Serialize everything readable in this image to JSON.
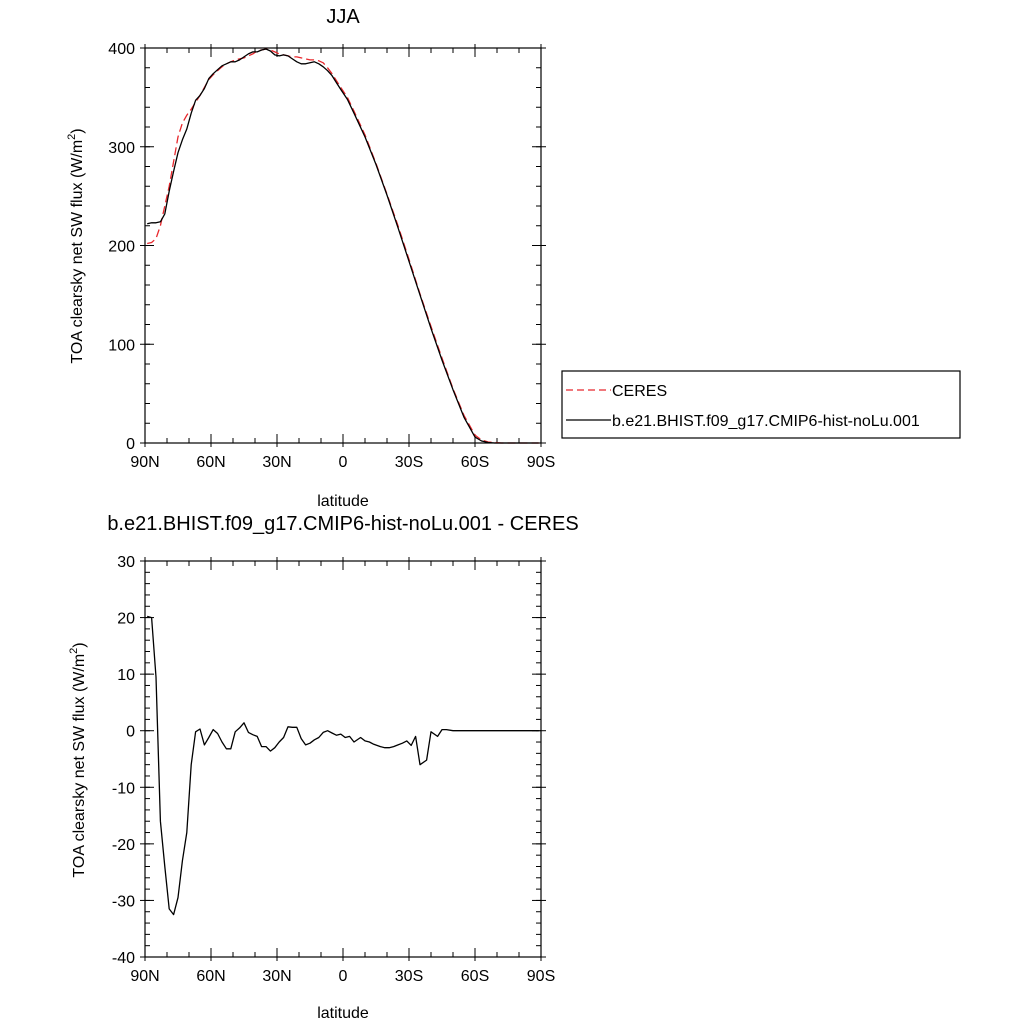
{
  "chart_data": [
    {
      "type": "line",
      "title": "JJA",
      "xlabel": "latitude",
      "ylabel": "TOA clearsky net SW flux (W/m",
      "ylabel_sup": "2",
      "ylabel_end": ")",
      "xlim": [
        90,
        -90
      ],
      "ylim": [
        0,
        400
      ],
      "xticks": [
        90,
        60,
        30,
        0,
        -30,
        -60,
        -90
      ],
      "xtick_labels": [
        "90N",
        "60N",
        "30N",
        "0",
        "30S",
        "60S",
        "90S"
      ],
      "yticks": [
        0,
        100,
        200,
        300,
        400
      ],
      "ytick_labels": [
        "0",
        "100",
        "200",
        "300",
        "400"
      ],
      "legend_placement": "right",
      "series": [
        {
          "name": "CERES",
          "color": "#e8282d",
          "dash": true,
          "x": [
            89,
            87,
            85,
            83,
            81,
            79,
            77,
            75,
            73,
            71,
            69,
            67,
            65,
            63,
            61,
            59,
            57,
            55,
            53,
            51,
            49,
            47,
            45,
            43,
            41,
            39,
            37,
            35,
            33,
            31,
            29,
            27,
            25,
            23,
            21,
            19,
            17,
            15,
            13,
            11,
            9,
            7,
            5,
            3,
            1,
            -2,
            -5,
            -10,
            -15,
            -20,
            -25,
            -30,
            -35,
            -40,
            -45,
            -50,
            -55,
            -60,
            -63,
            -66,
            -69,
            -72,
            -75,
            -78,
            -81,
            -84,
            -87,
            -89
          ],
          "y": [
            202,
            203,
            207,
            220,
            240,
            260,
            285,
            310,
            324,
            332,
            338,
            345,
            352,
            360,
            368,
            373,
            377,
            381,
            384,
            386,
            388,
            389,
            390,
            392,
            394,
            397,
            398,
            399,
            398,
            396,
            394,
            393,
            392,
            391,
            391,
            390,
            389,
            388,
            388,
            387,
            385,
            380,
            374,
            367,
            360,
            350,
            336,
            312,
            283,
            252,
            220,
            186,
            151,
            118,
            86,
            55,
            28,
            8,
            3,
            1,
            0.5,
            0,
            0,
            0,
            0,
            0,
            0,
            0
          ]
        },
        {
          "name": "b.e21.BHIST.f09_g17.CMIP6-hist-noLu.001",
          "color": "#000000",
          "dash": false,
          "x": [
            89,
            87,
            85,
            83,
            81,
            79,
            77,
            75,
            73,
            71,
            69,
            67,
            65,
            63,
            61,
            59,
            57,
            55,
            53,
            51,
            49,
            47,
            45,
            43,
            41,
            39,
            37,
            35,
            33,
            31,
            29,
            27,
            25,
            23,
            21,
            19,
            17,
            15,
            13,
            11,
            9,
            7,
            5,
            3,
            1,
            -2,
            -5,
            -10,
            -15,
            -20,
            -25,
            -30,
            -35,
            -40,
            -45,
            -50,
            -55,
            -60,
            -63,
            -66,
            -69,
            -72,
            -75,
            -78,
            -81,
            -84,
            -87,
            -89
          ],
          "y": [
            222,
            223,
            223,
            224,
            232,
            255,
            275,
            294,
            307,
            318,
            334,
            347,
            352,
            359,
            369,
            374,
            378,
            382,
            384,
            386,
            386,
            388,
            391,
            394,
            396,
            396,
            398,
            399,
            397,
            393,
            392,
            393,
            392,
            389,
            386,
            384,
            384,
            385,
            386,
            384,
            381,
            377,
            372,
            365,
            358,
            348,
            334,
            310,
            282,
            251,
            218,
            184,
            150,
            116,
            84,
            54,
            26,
            6,
            2,
            0.5,
            0,
            0,
            0,
            0,
            0,
            0,
            0,
            0
          ]
        }
      ]
    },
    {
      "type": "line",
      "title": "b.e21.BHIST.f09_g17.CMIP6-hist-noLu.001 - CERES",
      "xlabel": "latitude",
      "ylabel": "TOA clearsky net SW flux (W/m",
      "ylabel_sup": "2",
      "ylabel_end": ")",
      "xlim": [
        90,
        -90
      ],
      "ylim": [
        -40,
        30
      ],
      "xticks": [
        90,
        60,
        30,
        0,
        -30,
        -60,
        -90
      ],
      "xtick_labels": [
        "90N",
        "60N",
        "30N",
        "0",
        "30S",
        "60S",
        "90S"
      ],
      "yticks": [
        -40,
        -30,
        -20,
        -10,
        0,
        10,
        20,
        30
      ],
      "ytick_labels": [
        "-40",
        "-30",
        "-20",
        "-10",
        "0",
        "10",
        "20",
        "30"
      ],
      "series": [
        {
          "color": "#000000",
          "dash": false,
          "x": [
            89,
            87,
            85,
            83,
            81,
            79,
            77,
            75,
            73,
            71,
            69,
            67,
            65,
            63,
            61,
            59,
            57,
            55,
            53,
            51,
            49,
            47,
            45,
            43,
            41,
            39,
            37,
            35,
            33,
            31,
            29,
            27,
            25,
            23,
            21,
            19,
            17,
            15,
            13,
            11,
            9,
            7,
            5,
            3,
            1,
            -1,
            -3,
            -5,
            -8,
            -10,
            -12,
            -14,
            -17,
            -19,
            -21,
            -23,
            -25,
            -27,
            -29,
            -31,
            -33,
            -35,
            -38,
            -40,
            -43,
            -45,
            -47,
            -50,
            -53,
            -55,
            -57,
            -59,
            -61,
            -63,
            -65,
            -67,
            -69,
            -71,
            -73,
            -75,
            -77,
            -80,
            -83,
            -86,
            -89
          ],
          "y": [
            20.2,
            20,
            9.5,
            -16,
            -24,
            -31.5,
            -32.5,
            -29.5,
            -23,
            -18,
            -6,
            -0.2,
            0.3,
            -2.5,
            -1.2,
            0.2,
            -0.5,
            -2,
            -3.2,
            -3.2,
            -0.2,
            0.5,
            1.4,
            -0.3,
            -0.7,
            -1,
            -2.8,
            -2.8,
            -3.6,
            -3,
            -2,
            -1.2,
            0.7,
            0.6,
            0.6,
            -1.4,
            -2.5,
            -2.2,
            -1.6,
            -1.2,
            -0.3,
            0,
            -0.4,
            -0.8,
            -0.6,
            -1.2,
            -1,
            -2,
            -1.2,
            -1.8,
            -2,
            -2.4,
            -2.8,
            -3,
            -3,
            -2.8,
            -2.5,
            -2.2,
            -1.8,
            -2.6,
            -1,
            -6,
            -5.2,
            -0.2,
            -1,
            0.2,
            0.2,
            0,
            0,
            0,
            0,
            0,
            0,
            0,
            0,
            0,
            0,
            0,
            0,
            0,
            0,
            0,
            0,
            0,
            0
          ]
        }
      ]
    }
  ]
}
